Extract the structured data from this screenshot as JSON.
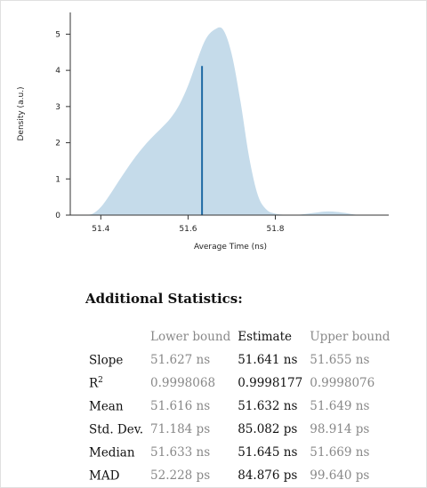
{
  "chart_data": {
    "type": "area",
    "title": "",
    "xlabel": "Average Time (ns)",
    "ylabel": "Density (a.u.)",
    "xlim": [
      51.33,
      52.06
    ],
    "ylim": [
      0,
      5.6
    ],
    "xticks": [
      "51.4",
      "51.6",
      "51.8"
    ],
    "yticks": [
      "0",
      "1",
      "2",
      "3",
      "4",
      "5"
    ],
    "fill_color": "#c5dbea",
    "line_color": "#1f6aa5",
    "grid": false,
    "density": {
      "x": [
        51.36,
        51.38,
        51.4,
        51.42,
        51.44,
        51.46,
        51.48,
        51.5,
        51.52,
        51.54,
        51.56,
        51.58,
        51.6,
        51.62,
        51.64,
        51.66,
        51.68,
        51.7,
        51.72,
        51.74,
        51.76,
        51.78,
        51.8,
        51.82,
        51.84,
        51.86,
        51.88,
        51.9,
        51.92,
        51.94,
        51.96,
        51.98,
        52.0
      ],
      "y": [
        0.0,
        0.03,
        0.22,
        0.55,
        0.92,
        1.28,
        1.62,
        1.92,
        2.18,
        2.42,
        2.68,
        3.05,
        3.58,
        4.25,
        4.85,
        5.12,
        5.13,
        4.45,
        3.15,
        1.6,
        0.55,
        0.15,
        0.04,
        0.01,
        0.0,
        0.02,
        0.05,
        0.08,
        0.1,
        0.09,
        0.06,
        0.02,
        0.0
      ]
    },
    "estimate_line": {
      "x": 51.632,
      "y": 4.12
    }
  },
  "stats": {
    "heading": "Additional Statistics:",
    "columns": [
      "Lower bound",
      "Estimate",
      "Upper bound"
    ],
    "rows": [
      {
        "label": "Slope",
        "sup": "",
        "lower": "51.627 ns",
        "estimate": "51.641 ns",
        "upper": "51.655 ns"
      },
      {
        "label": "R",
        "sup": "2",
        "lower": "0.9998068",
        "estimate": "0.9998177",
        "upper": "0.9998076"
      },
      {
        "label": "Mean",
        "sup": "",
        "lower": "51.616 ns",
        "estimate": "51.632 ns",
        "upper": "51.649 ns"
      },
      {
        "label": "Std. Dev.",
        "sup": "",
        "lower": "71.184 ps",
        "estimate": "85.082 ps",
        "upper": "98.914 ps"
      },
      {
        "label": "Median",
        "sup": "",
        "lower": "51.633 ns",
        "estimate": "51.645 ns",
        "upper": "51.669 ns"
      },
      {
        "label": "MAD",
        "sup": "",
        "lower": "52.228 ps",
        "estimate": "84.876 ps",
        "upper": "99.640 ps"
      }
    ]
  }
}
